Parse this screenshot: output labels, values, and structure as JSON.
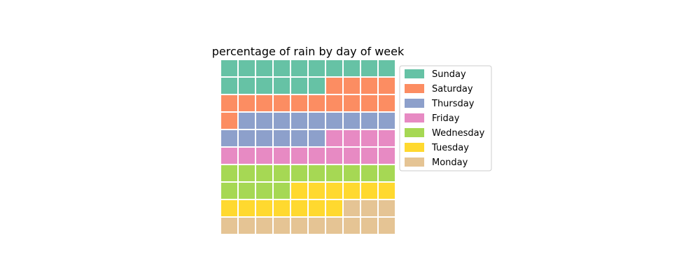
{
  "chart_data": {
    "type": "waffle",
    "title": "percentage of rain by day of week",
    "grid": {
      "rows": 10,
      "cols": 10
    },
    "fill_order": "row-major from top-left",
    "series": [
      {
        "name": "Sunday",
        "value": 16,
        "color": "#66c2a5"
      },
      {
        "name": "Saturday",
        "value": 15,
        "color": "#fc8d62"
      },
      {
        "name": "Thursday",
        "value": 15,
        "color": "#8da0cb"
      },
      {
        "name": "Friday",
        "value": 14,
        "color": "#e78ac3"
      },
      {
        "name": "Wednesday",
        "value": 14,
        "color": "#a6d854"
      },
      {
        "name": "Tuesday",
        "value": 13,
        "color": "#ffd92f"
      },
      {
        "name": "Monday",
        "value": 13,
        "color": "#e5c494"
      }
    ],
    "legend": {
      "placement": "right",
      "border_color": "#cccccc"
    }
  }
}
